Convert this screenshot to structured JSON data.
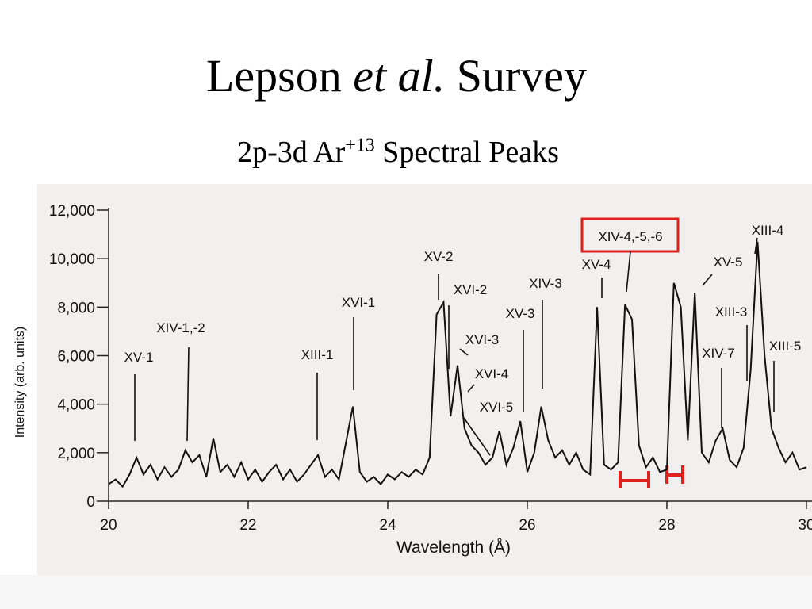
{
  "chart_data": {
    "type": "line",
    "title": {
      "before": "Lepson ",
      "italic": "et al.",
      "after": " Survey"
    },
    "subtitle": {
      "before": "2p-3d Ar",
      "superscript": "+13",
      "after": " Spectral Peaks"
    },
    "xlabel": "Wavelength (Å)",
    "ylabel": "Intensity (arb. units)",
    "color": "#111111",
    "xlim": [
      20,
      30.08
    ],
    "ylim": [
      0,
      12000
    ],
    "xticks": [
      20,
      22,
      24,
      26,
      28,
      30
    ],
    "yticks": [
      0,
      {
        "value": 2000,
        "label": "2,000"
      },
      {
        "value": 4000,
        "label": "4,000"
      },
      {
        "value": 6000,
        "label": "6,000"
      },
      {
        "value": 8000,
        "label": "8,000"
      },
      {
        "value": 10000,
        "label": "10,000"
      },
      {
        "value": 12000,
        "label": "12,000"
      }
    ],
    "x": [
      20.0,
      20.1,
      20.2,
      20.3,
      20.4,
      20.5,
      20.6,
      20.7,
      20.8,
      20.9,
      21.0,
      21.1,
      21.2,
      21.3,
      21.4,
      21.5,
      21.6,
      21.7,
      21.8,
      21.9,
      22.0,
      22.1,
      22.2,
      22.3,
      22.4,
      22.5,
      22.6,
      22.7,
      22.8,
      22.9,
      23.0,
      23.1,
      23.2,
      23.3,
      23.4,
      23.5,
      23.6,
      23.7,
      23.8,
      23.9,
      24.0,
      24.1,
      24.2,
      24.3,
      24.4,
      24.5,
      24.6,
      24.7,
      24.8,
      24.9,
      25.0,
      25.1,
      25.2,
      25.3,
      25.4,
      25.5,
      25.6,
      25.7,
      25.8,
      25.9,
      26.0,
      26.1,
      26.2,
      26.3,
      26.4,
      26.5,
      26.6,
      26.7,
      26.8,
      26.9,
      27.0,
      27.1,
      27.2,
      27.3,
      27.4,
      27.5,
      27.6,
      27.7,
      27.8,
      27.9,
      28.0,
      28.1,
      28.2,
      28.3,
      28.4,
      28.5,
      28.6,
      28.7,
      28.8,
      28.9,
      29.0,
      29.1,
      29.2,
      29.3,
      29.4,
      29.5,
      29.6,
      29.7,
      29.8,
      29.9,
      30.0
    ],
    "values": [
      700,
      900,
      600,
      1100,
      1800,
      1100,
      1500,
      900,
      1400,
      1000,
      1300,
      2100,
      1600,
      1900,
      1000,
      2600,
      1200,
      1500,
      1000,
      1600,
      900,
      1300,
      800,
      1200,
      1500,
      900,
      1300,
      800,
      1100,
      1500,
      1900,
      1000,
      1300,
      900,
      2400,
      3900,
      1200,
      800,
      1000,
      700,
      1100,
      900,
      1200,
      1000,
      1300,
      1100,
      1800,
      7700,
      8200,
      3500,
      5600,
      3000,
      2300,
      2000,
      1500,
      1800,
      2900,
      1500,
      2200,
      3300,
      1200,
      2000,
      3900,
      2500,
      1800,
      2100,
      1500,
      2000,
      1300,
      1100,
      8000,
      1500,
      1300,
      1600,
      8100,
      7500,
      2300,
      1400,
      1800,
      1200,
      1300,
      9000,
      8000,
      2500,
      8600,
      2000,
      1600,
      2500,
      3000,
      1700,
      1400,
      2200,
      5400,
      10700,
      6000,
      3000,
      2200,
      1600,
      2000,
      1300,
      1400
    ],
    "annotations": [
      "XV-1",
      "XIV-1,-2",
      "XIII-1",
      "XVI-1",
      "XV-2",
      "XVI-2",
      "XVI-3",
      "XVI-4",
      "XVI-5",
      "XIV-3",
      "XV-3",
      "XIV-4,-5,-6",
      "XV-4",
      "XIII-4",
      "XV-5",
      "XIII-3",
      "XIV-7",
      "XIII-5"
    ]
  }
}
